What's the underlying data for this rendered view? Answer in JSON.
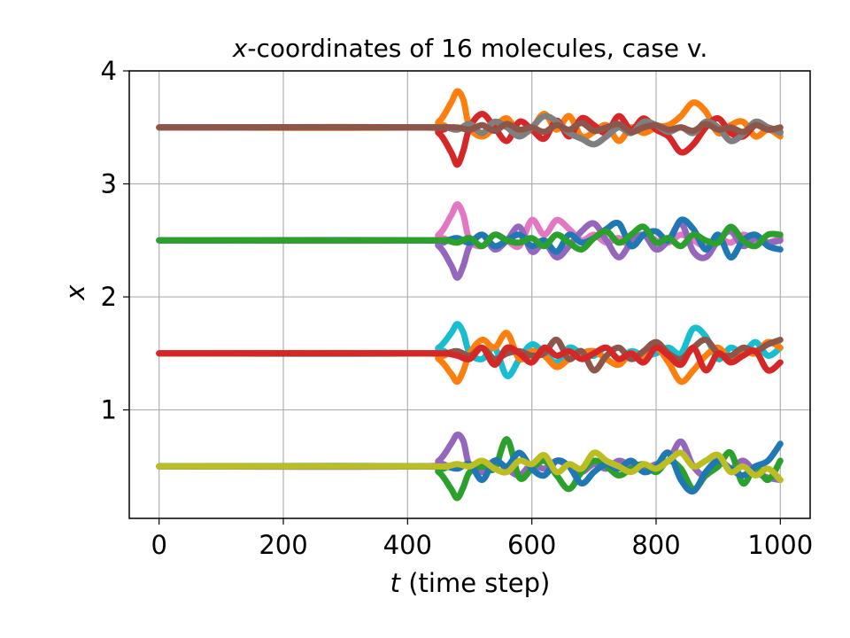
{
  "chart_data": {
    "type": "line",
    "title_var": "x",
    "title_rest": "-coordinates of 16 molecules, case v.",
    "xlabel_var": "t",
    "xlabel_rest": " (time step)",
    "ylabel": "x",
    "xlim": [
      -48,
      1048
    ],
    "ylim": [
      0.04,
      4.0
    ],
    "xticks": [
      0,
      200,
      400,
      600,
      800,
      1000
    ],
    "yticks": [
      1,
      2,
      3,
      4
    ],
    "grid": true,
    "legend": "none",
    "series": [
      {
        "color": "#ff7f0e",
        "x": [
          0,
          420,
          450,
          470,
          480,
          490,
          500,
          520,
          540,
          560,
          580,
          600,
          620,
          640,
          660,
          680,
          700,
          720,
          740,
          760,
          780,
          800,
          820,
          840,
          860,
          880,
          900,
          920,
          940,
          960,
          980,
          1000
        ],
        "y": [
          3.5,
          3.5,
          3.55,
          3.72,
          3.82,
          3.74,
          3.5,
          3.42,
          3.5,
          3.58,
          3.44,
          3.49,
          3.62,
          3.48,
          3.6,
          3.42,
          3.46,
          3.52,
          3.38,
          3.5,
          3.45,
          3.5,
          3.52,
          3.6,
          3.72,
          3.64,
          3.45,
          3.52,
          3.55,
          3.42,
          3.48,
          3.42
        ]
      },
      {
        "color": "#d62728",
        "x": [
          0,
          420,
          450,
          470,
          480,
          490,
          500,
          520,
          540,
          560,
          580,
          600,
          620,
          640,
          660,
          680,
          700,
          720,
          740,
          760,
          780,
          800,
          820,
          840,
          860,
          880,
          900,
          920,
          940,
          960,
          980,
          1000
        ],
        "y": [
          3.5,
          3.5,
          3.45,
          3.28,
          3.17,
          3.3,
          3.5,
          3.62,
          3.5,
          3.38,
          3.55,
          3.48,
          3.4,
          3.56,
          3.42,
          3.58,
          3.52,
          3.45,
          3.6,
          3.48,
          3.58,
          3.48,
          3.42,
          3.28,
          3.35,
          3.5,
          3.58,
          3.45,
          3.42,
          3.52,
          3.5,
          3.46
        ]
      },
      {
        "color": "#7f7f7f",
        "x": [
          0,
          420,
          460,
          480,
          500,
          520,
          540,
          560,
          580,
          600,
          620,
          640,
          660,
          680,
          700,
          720,
          740,
          760,
          780,
          800,
          820,
          840,
          860,
          880,
          900,
          920,
          940,
          960,
          980,
          1000
        ],
        "y": [
          3.5,
          3.5,
          3.5,
          3.48,
          3.53,
          3.45,
          3.55,
          3.5,
          3.42,
          3.5,
          3.6,
          3.55,
          3.45,
          3.4,
          3.35,
          3.42,
          3.5,
          3.45,
          3.55,
          3.52,
          3.46,
          3.5,
          3.45,
          3.55,
          3.5,
          3.38,
          3.44,
          3.55,
          3.5,
          3.45
        ]
      },
      {
        "color": "#8c564b",
        "x": [
          0,
          420,
          460,
          480,
          500,
          520,
          540,
          560,
          580,
          600,
          620,
          640,
          660,
          680,
          700,
          720,
          740,
          760,
          780,
          800,
          820,
          840,
          860,
          880,
          900,
          920,
          940,
          960,
          980,
          1000
        ],
        "y": [
          3.5,
          3.5,
          3.5,
          3.5,
          3.48,
          3.52,
          3.47,
          3.53,
          3.48,
          3.5,
          3.46,
          3.52,
          3.48,
          3.54,
          3.47,
          3.5,
          3.53,
          3.46,
          3.5,
          3.52,
          3.48,
          3.5,
          3.47,
          3.53,
          3.48,
          3.5,
          3.46,
          3.52,
          3.48,
          3.5
        ]
      },
      {
        "color": "#e377c2",
        "x": [
          0,
          420,
          450,
          470,
          480,
          490,
          500,
          520,
          540,
          560,
          580,
          600,
          620,
          640,
          660,
          680,
          700,
          720,
          740,
          760,
          780,
          800,
          820,
          840,
          860,
          880,
          900,
          920,
          940,
          960,
          980,
          1000
        ],
        "y": [
          2.5,
          2.5,
          2.55,
          2.72,
          2.82,
          2.72,
          2.5,
          2.45,
          2.55,
          2.5,
          2.45,
          2.68,
          2.55,
          2.68,
          2.6,
          2.5,
          2.55,
          2.48,
          2.52,
          2.45,
          2.55,
          2.5,
          2.48,
          2.55,
          2.5,
          2.45,
          2.52,
          2.48,
          2.55,
          2.5,
          2.48,
          2.52
        ]
      },
      {
        "color": "#9467bd",
        "x": [
          0,
          420,
          450,
          470,
          480,
          490,
          500,
          520,
          540,
          560,
          580,
          600,
          620,
          640,
          660,
          680,
          700,
          720,
          740,
          760,
          780,
          800,
          820,
          840,
          860,
          880,
          900,
          920,
          940,
          960,
          980,
          1000
        ],
        "y": [
          2.5,
          2.5,
          2.45,
          2.28,
          2.17,
          2.28,
          2.45,
          2.55,
          2.42,
          2.5,
          2.62,
          2.4,
          2.48,
          2.35,
          2.45,
          2.58,
          2.65,
          2.5,
          2.35,
          2.48,
          2.55,
          2.42,
          2.5,
          2.65,
          2.4,
          2.35,
          2.5,
          2.58,
          2.45,
          2.52,
          2.48,
          2.5
        ]
      },
      {
        "color": "#1f77b4",
        "x": [
          0,
          420,
          460,
          480,
          500,
          520,
          540,
          560,
          580,
          600,
          620,
          640,
          660,
          680,
          700,
          720,
          740,
          760,
          780,
          800,
          820,
          840,
          860,
          880,
          900,
          920,
          940,
          960,
          980,
          1000
        ],
        "y": [
          2.5,
          2.5,
          2.5,
          2.52,
          2.48,
          2.55,
          2.45,
          2.5,
          2.55,
          2.45,
          2.5,
          2.4,
          2.55,
          2.48,
          2.52,
          2.6,
          2.65,
          2.45,
          2.55,
          2.58,
          2.5,
          2.68,
          2.6,
          2.42,
          2.55,
          2.35,
          2.5,
          2.55,
          2.45,
          2.42
        ]
      },
      {
        "color": "#2ca02c",
        "x": [
          0,
          420,
          460,
          480,
          500,
          520,
          540,
          560,
          580,
          600,
          620,
          640,
          660,
          680,
          700,
          720,
          740,
          760,
          780,
          800,
          820,
          840,
          860,
          880,
          900,
          920,
          940,
          960,
          980,
          1000
        ],
        "y": [
          2.5,
          2.5,
          2.5,
          2.48,
          2.52,
          2.45,
          2.55,
          2.5,
          2.48,
          2.52,
          2.45,
          2.55,
          2.48,
          2.42,
          2.52,
          2.58,
          2.48,
          2.55,
          2.62,
          2.48,
          2.52,
          2.45,
          2.55,
          2.5,
          2.48,
          2.62,
          2.5,
          2.45,
          2.55,
          2.55
        ]
      },
      {
        "color": "#17becf",
        "x": [
          0,
          420,
          450,
          470,
          480,
          490,
          500,
          520,
          540,
          560,
          580,
          600,
          620,
          640,
          660,
          680,
          700,
          720,
          740,
          760,
          780,
          800,
          820,
          840,
          860,
          880,
          900,
          920,
          940,
          960,
          980,
          1000
        ],
        "y": [
          1.5,
          1.5,
          1.55,
          1.68,
          1.76,
          1.68,
          1.5,
          1.45,
          1.55,
          1.3,
          1.45,
          1.58,
          1.5,
          1.42,
          1.55,
          1.5,
          1.48,
          1.55,
          1.45,
          1.52,
          1.48,
          1.5,
          1.55,
          1.5,
          1.72,
          1.65,
          1.45,
          1.55,
          1.5,
          1.6,
          1.48,
          1.55
        ]
      },
      {
        "color": "#ff7f0e",
        "x": [
          0,
          420,
          450,
          470,
          480,
          490,
          500,
          520,
          540,
          560,
          580,
          600,
          620,
          640,
          660,
          680,
          700,
          720,
          740,
          760,
          780,
          800,
          820,
          840,
          860,
          880,
          900,
          920,
          940,
          960,
          980,
          1000
        ],
        "y": [
          1.5,
          1.5,
          1.45,
          1.32,
          1.25,
          1.35,
          1.5,
          1.62,
          1.55,
          1.68,
          1.45,
          1.52,
          1.48,
          1.38,
          1.45,
          1.5,
          1.52,
          1.45,
          1.4,
          1.5,
          1.45,
          1.55,
          1.42,
          1.25,
          1.35,
          1.48,
          1.55,
          1.45,
          1.52,
          1.5,
          1.6,
          1.55
        ]
      },
      {
        "color": "#8c564b",
        "x": [
          0,
          420,
          460,
          480,
          500,
          520,
          540,
          560,
          580,
          600,
          620,
          640,
          660,
          680,
          700,
          720,
          740,
          760,
          780,
          800,
          820,
          840,
          860,
          880,
          900,
          920,
          940,
          960,
          980,
          1000
        ],
        "y": [
          1.5,
          1.5,
          1.5,
          1.52,
          1.48,
          1.55,
          1.45,
          1.5,
          1.52,
          1.48,
          1.5,
          1.62,
          1.45,
          1.52,
          1.35,
          1.48,
          1.55,
          1.45,
          1.52,
          1.6,
          1.5,
          1.45,
          1.55,
          1.62,
          1.5,
          1.48,
          1.55,
          1.52,
          1.58,
          1.62
        ]
      },
      {
        "color": "#d62728",
        "x": [
          0,
          420,
          460,
          480,
          500,
          520,
          540,
          560,
          580,
          600,
          620,
          640,
          660,
          680,
          700,
          720,
          740,
          760,
          780,
          800,
          820,
          840,
          860,
          880,
          900,
          920,
          940,
          960,
          980,
          1000
        ],
        "y": [
          1.5,
          1.5,
          1.5,
          1.48,
          1.45,
          1.55,
          1.4,
          1.55,
          1.5,
          1.42,
          1.55,
          1.48,
          1.52,
          1.45,
          1.5,
          1.55,
          1.45,
          1.5,
          1.42,
          1.55,
          1.48,
          1.4,
          1.55,
          1.35,
          1.5,
          1.42,
          1.48,
          1.52,
          1.35,
          1.42
        ]
      },
      {
        "color": "#9467bd",
        "x": [
          0,
          420,
          450,
          470,
          480,
          490,
          500,
          520,
          540,
          560,
          580,
          600,
          620,
          640,
          660,
          680,
          700,
          720,
          740,
          760,
          780,
          800,
          820,
          840,
          860,
          880,
          900,
          920,
          940,
          960,
          980,
          1000
        ],
        "y": [
          0.5,
          0.5,
          0.55,
          0.7,
          0.78,
          0.72,
          0.5,
          0.45,
          0.55,
          0.48,
          0.42,
          0.52,
          0.48,
          0.55,
          0.5,
          0.45,
          0.52,
          0.48,
          0.55,
          0.5,
          0.48,
          0.52,
          0.55,
          0.72,
          0.5,
          0.42,
          0.55,
          0.48,
          0.55,
          0.45,
          0.4,
          0.38
        ]
      },
      {
        "color": "#2ca02c",
        "x": [
          0,
          420,
          450,
          470,
          480,
          490,
          500,
          520,
          540,
          560,
          580,
          600,
          620,
          640,
          660,
          680,
          700,
          720,
          740,
          760,
          780,
          800,
          820,
          840,
          860,
          880,
          900,
          920,
          940,
          960,
          980,
          1000
        ],
        "y": [
          0.5,
          0.5,
          0.45,
          0.3,
          0.22,
          0.32,
          0.45,
          0.5,
          0.48,
          0.74,
          0.4,
          0.48,
          0.55,
          0.42,
          0.3,
          0.45,
          0.55,
          0.5,
          0.42,
          0.48,
          0.52,
          0.45,
          0.55,
          0.48,
          0.3,
          0.42,
          0.5,
          0.62,
          0.35,
          0.5,
          0.38,
          0.55
        ]
      },
      {
        "color": "#1f77b4",
        "x": [
          0,
          420,
          460,
          480,
          500,
          520,
          540,
          560,
          580,
          600,
          620,
          640,
          660,
          680,
          700,
          720,
          740,
          760,
          780,
          800,
          820,
          840,
          860,
          880,
          900,
          920,
          940,
          960,
          980,
          1000
        ],
        "y": [
          0.5,
          0.5,
          0.5,
          0.48,
          0.52,
          0.38,
          0.55,
          0.5,
          0.62,
          0.48,
          0.42,
          0.55,
          0.5,
          0.35,
          0.45,
          0.52,
          0.48,
          0.55,
          0.45,
          0.5,
          0.62,
          0.38,
          0.28,
          0.45,
          0.55,
          0.48,
          0.42,
          0.5,
          0.55,
          0.7
        ]
      },
      {
        "color": "#bcbd22",
        "x": [
          0,
          420,
          460,
          480,
          500,
          520,
          540,
          560,
          580,
          600,
          620,
          640,
          660,
          680,
          700,
          720,
          740,
          760,
          780,
          800,
          820,
          840,
          860,
          880,
          900,
          920,
          940,
          960,
          980,
          1000
        ],
        "y": [
          0.5,
          0.5,
          0.5,
          0.52,
          0.5,
          0.55,
          0.48,
          0.45,
          0.55,
          0.52,
          0.6,
          0.45,
          0.52,
          0.48,
          0.62,
          0.55,
          0.5,
          0.45,
          0.52,
          0.48,
          0.55,
          0.62,
          0.5,
          0.55,
          0.6,
          0.45,
          0.5,
          0.42,
          0.48,
          0.38
        ]
      }
    ]
  }
}
